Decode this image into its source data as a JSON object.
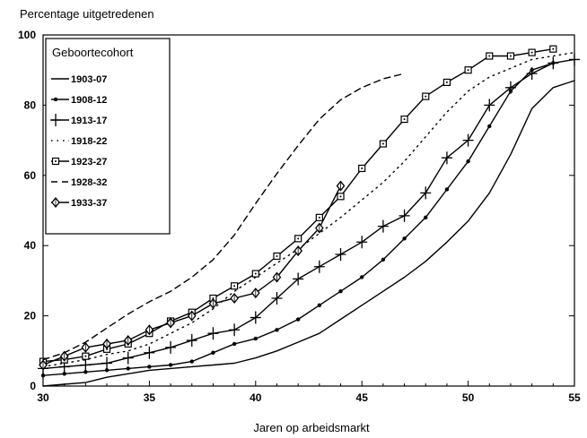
{
  "chart_data": {
    "type": "line",
    "title": "",
    "ylabel": "Percentage uitgetredenen",
    "xlabel": "Jaren op arbeidsmarkt",
    "xlim": [
      30,
      55
    ],
    "ylim": [
      0,
      100
    ],
    "x_ticks": [
      30,
      35,
      40,
      45,
      50,
      55
    ],
    "y_ticks": [
      0,
      20,
      40,
      60,
      80,
      100
    ],
    "grid": false,
    "legend": {
      "title": "Geboortecohort",
      "position": "top-left"
    },
    "series": [
      {
        "name": "1903-07",
        "marker": "none",
        "dash": "solid",
        "x": [
          30,
          31,
          32,
          33,
          34,
          35,
          36,
          37,
          38,
          39,
          40,
          41,
          42,
          43,
          44,
          45,
          46,
          47,
          48,
          49,
          50,
          51,
          52,
          53,
          54,
          55
        ],
        "y": [
          0,
          0.5,
          1,
          2.5,
          3.5,
          4.5,
          5,
          5.5,
          6,
          6.5,
          8,
          10,
          12.5,
          15,
          19,
          23,
          27,
          31,
          35.5,
          41,
          47,
          55,
          66,
          79,
          85,
          87
        ]
      },
      {
        "name": "1908-12",
        "marker": "dot",
        "dash": "solid",
        "x": [
          30,
          31,
          32,
          33,
          34,
          35,
          36,
          37,
          38,
          39,
          40,
          41,
          42,
          43,
          44,
          45,
          46,
          47,
          48,
          49,
          50,
          51,
          52,
          53,
          54
        ],
        "y": [
          3,
          3.5,
          4,
          4.5,
          5,
          5.5,
          6,
          7,
          9.5,
          12,
          13.5,
          16,
          19,
          23,
          27,
          31,
          36,
          42,
          48,
          56,
          64,
          74,
          84,
          90,
          92
        ]
      },
      {
        "name": "1913-17",
        "marker": "plus",
        "dash": "solid",
        "x": [
          30,
          31,
          32,
          33,
          34,
          35,
          36,
          37,
          38,
          39,
          40,
          41,
          42,
          43,
          44,
          45,
          46,
          47,
          48,
          49,
          50,
          51,
          52,
          53,
          54,
          55
        ],
        "y": [
          5,
          5.5,
          6,
          6.5,
          8,
          9.5,
          11,
          13,
          15,
          16,
          19.5,
          25,
          30.5,
          34,
          37.5,
          41,
          45.5,
          48.5,
          55,
          65,
          70,
          80,
          85,
          89,
          92,
          93
        ]
      },
      {
        "name": "1918-22",
        "marker": "none",
        "dash": "dotted",
        "x": [
          30,
          31,
          32,
          33,
          34,
          35,
          36,
          37,
          38,
          39,
          40,
          41,
          42,
          43,
          44,
          45,
          46,
          47,
          48,
          49,
          50,
          51,
          52,
          53,
          54,
          55
        ],
        "y": [
          5.5,
          6.5,
          7.5,
          9,
          10,
          12,
          15,
          18,
          22,
          27,
          31,
          35,
          39,
          43.5,
          48,
          53,
          58,
          64,
          71,
          78,
          84,
          88,
          90.5,
          93,
          94,
          95
        ]
      },
      {
        "name": "1923-27",
        "marker": "square",
        "dash": "solid",
        "x": [
          30,
          31,
          32,
          33,
          34,
          35,
          36,
          37,
          38,
          39,
          40,
          41,
          42,
          43,
          44,
          45,
          46,
          47,
          48,
          49,
          50,
          51,
          52,
          53,
          54
        ],
        "y": [
          7,
          7.5,
          8.5,
          10.5,
          12,
          15,
          18.5,
          21,
          25,
          28.5,
          32,
          37,
          42,
          48,
          54,
          62,
          69,
          76,
          82.5,
          86.5,
          90,
          94,
          94,
          95,
          96
        ]
      },
      {
        "name": "1928-32",
        "marker": "none",
        "dash": "dashed",
        "x": [
          30,
          31,
          32,
          33,
          34,
          35,
          36,
          37,
          38,
          39,
          40,
          41,
          42,
          43,
          44,
          45,
          46,
          47
        ],
        "y": [
          7.5,
          9.5,
          12.5,
          16.5,
          20.5,
          24,
          27,
          31,
          36,
          43,
          52,
          60.5,
          68.5,
          76,
          81.5,
          85,
          87.5,
          89
        ]
      },
      {
        "name": "1933-37",
        "marker": "diamond",
        "dash": "solid",
        "x": [
          30,
          31,
          32,
          33,
          34,
          35,
          36,
          37,
          38,
          39,
          40,
          41,
          42,
          43,
          44
        ],
        "y": [
          6,
          8.5,
          11,
          12,
          13,
          16,
          18,
          20,
          23.5,
          25,
          26.5,
          31,
          38.5,
          45,
          57
        ]
      }
    ]
  }
}
